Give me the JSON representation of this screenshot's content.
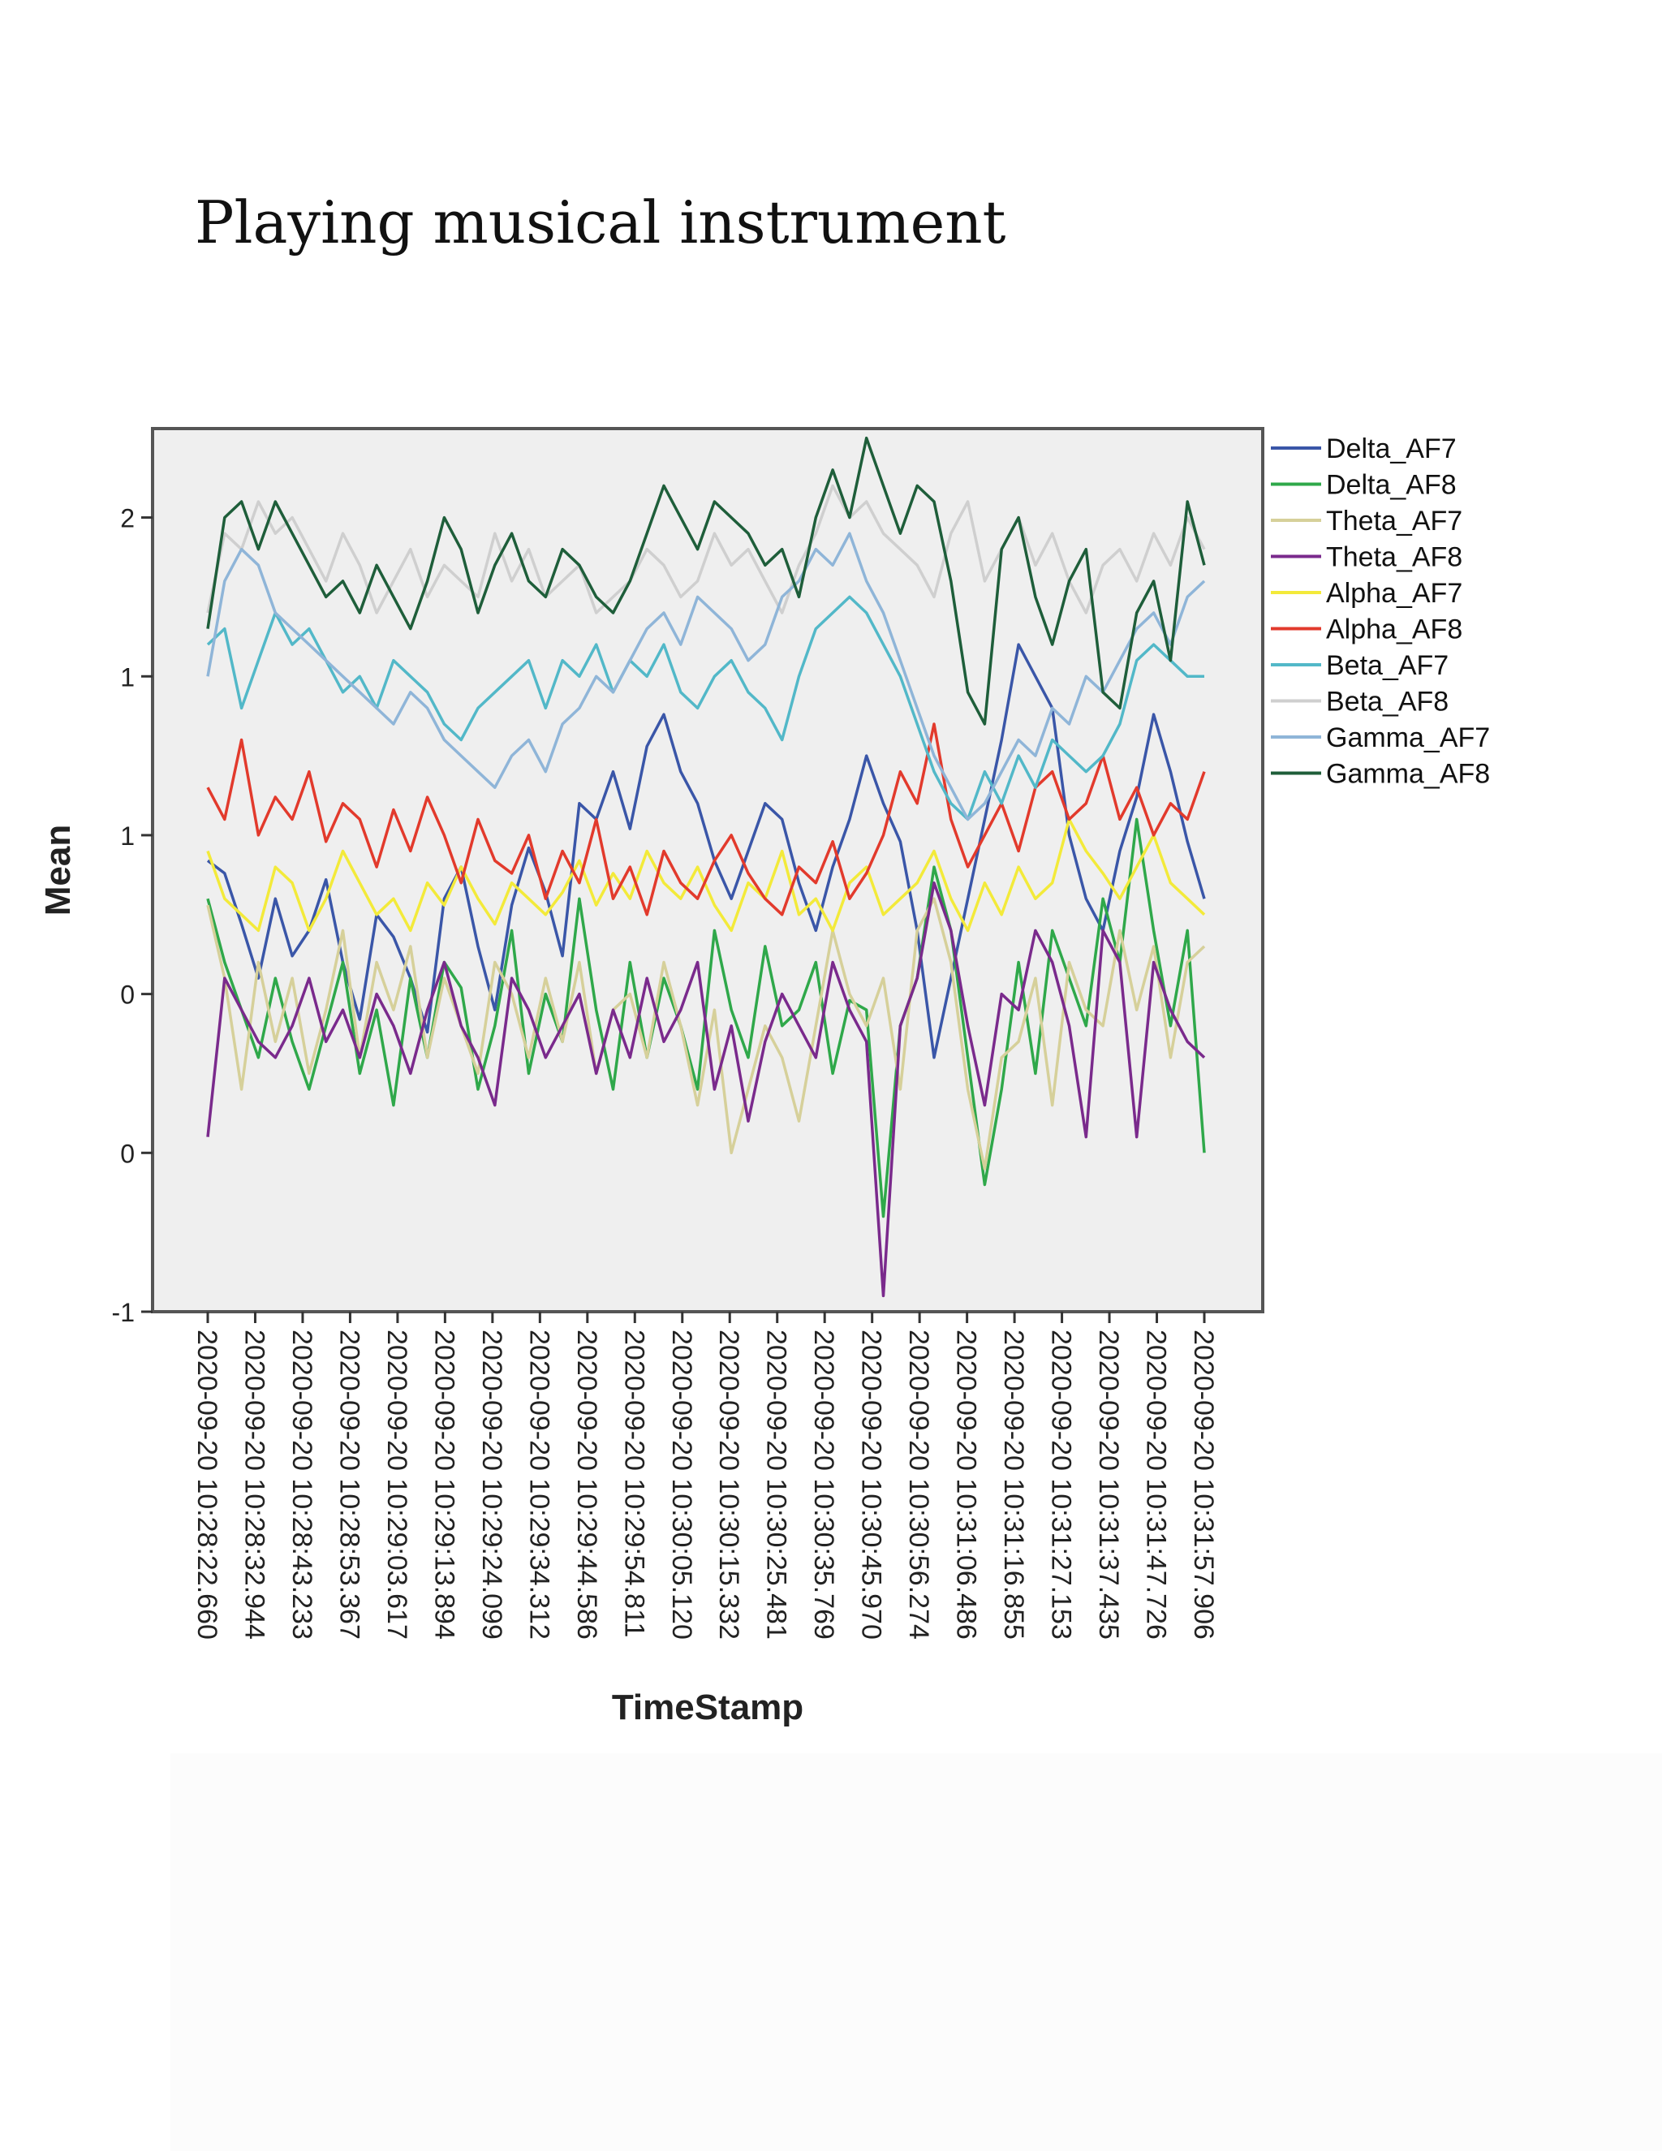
{
  "page_title": "Playing musical instrument",
  "chart_data": {
    "type": "line",
    "xlabel": "TimeStamp",
    "ylabel": "Mean",
    "yticks": [
      "-1",
      "0",
      "0",
      "1",
      "1",
      "2"
    ],
    "ytick_values": [
      -1.0,
      -0.5,
      0.0,
      0.5,
      1.0,
      1.5
    ],
    "ylim": [
      -1.0,
      1.78
    ],
    "grid": false,
    "legend_position": "right",
    "x_ticks": [
      "2020-09-20 10:28:22.660",
      "2020-09-20 10:28:32.944",
      "2020-09-20 10:28:43.233",
      "2020-09-20 10:28:53.367",
      "2020-09-20 10:29:03.617",
      "2020-09-20 10:29:13.894",
      "2020-09-20 10:29:24.099",
      "2020-09-20 10:29:34.312",
      "2020-09-20 10:29:44.586",
      "2020-09-20 10:29:54.811",
      "2020-09-20 10:30:05.120",
      "2020-09-20 10:30:15.332",
      "2020-09-20 10:30:25.481",
      "2020-09-20 10:30:35.769",
      "2020-09-20 10:30:45.970",
      "2020-09-20 10:30:56.274",
      "2020-09-20 10:31:06.486",
      "2020-09-20 10:31:16.855",
      "2020-09-20 10:31:27.153",
      "2020-09-20 10:31:37.435",
      "2020-09-20 10:31:47.726",
      "2020-09-20 10:31:57.906"
    ],
    "series": [
      {
        "name": "Delta_AF7",
        "color": "#3a56a8",
        "values": [
          0.42,
          0.38,
          0.22,
          0.05,
          0.3,
          0.12,
          0.2,
          0.36,
          0.1,
          -0.08,
          0.25,
          0.18,
          0.05,
          -0.12,
          0.3,
          0.4,
          0.15,
          -0.05,
          0.28,
          0.46,
          0.32,
          0.12,
          0.6,
          0.55,
          0.7,
          0.52,
          0.78,
          0.88,
          0.7,
          0.6,
          0.42,
          0.3,
          0.45,
          0.6,
          0.55,
          0.35,
          0.2,
          0.4,
          0.55,
          0.75,
          0.6,
          0.48,
          0.2,
          -0.2,
          0.05,
          0.3,
          0.55,
          0.8,
          1.1,
          1.0,
          0.9,
          0.5,
          0.3,
          0.2,
          0.45,
          0.62,
          0.88,
          0.7,
          0.48,
          0.3
        ]
      },
      {
        "name": "Delta_AF8",
        "color": "#2fa84a",
        "values": [
          0.3,
          0.1,
          -0.05,
          -0.2,
          0.05,
          -0.15,
          -0.3,
          -0.1,
          0.1,
          -0.25,
          -0.05,
          -0.35,
          0.05,
          -0.2,
          0.1,
          0.02,
          -0.3,
          -0.1,
          0.2,
          -0.25,
          0.0,
          -0.15,
          0.3,
          -0.05,
          -0.3,
          0.1,
          -0.2,
          0.05,
          -0.1,
          -0.3,
          0.2,
          -0.05,
          -0.2,
          0.15,
          -0.1,
          -0.05,
          0.1,
          -0.25,
          -0.02,
          -0.05,
          -0.7,
          -0.1,
          0.05,
          0.4,
          0.2,
          -0.2,
          -0.6,
          -0.3,
          0.1,
          -0.25,
          0.2,
          0.05,
          -0.1,
          0.3,
          0.1,
          0.55,
          0.2,
          -0.1,
          0.2,
          -0.5
        ]
      },
      {
        "name": "Theta_AF7",
        "color": "#d6d09a",
        "values": [
          0.28,
          0.05,
          -0.3,
          0.1,
          -0.15,
          0.05,
          -0.25,
          -0.05,
          0.2,
          -0.2,
          0.1,
          -0.05,
          0.15,
          -0.2,
          0.05,
          -0.1,
          -0.25,
          0.1,
          0.0,
          -0.2,
          0.05,
          -0.15,
          0.1,
          -0.25,
          -0.05,
          0.0,
          -0.2,
          0.1,
          -0.1,
          -0.35,
          -0.05,
          -0.5,
          -0.3,
          -0.1,
          -0.2,
          -0.4,
          -0.1,
          0.2,
          0.0,
          -0.1,
          0.05,
          -0.3,
          0.2,
          0.3,
          0.1,
          -0.3,
          -0.55,
          -0.2,
          -0.15,
          0.05,
          -0.35,
          0.1,
          -0.05,
          -0.1,
          0.2,
          -0.05,
          0.15,
          -0.2,
          0.1,
          0.15
        ]
      },
      {
        "name": "Theta_AF8",
        "color": "#7a2a8c",
        "values": [
          -0.45,
          0.05,
          -0.05,
          -0.15,
          -0.2,
          -0.1,
          0.05,
          -0.15,
          -0.05,
          -0.2,
          0.0,
          -0.1,
          -0.25,
          -0.05,
          0.1,
          -0.1,
          -0.2,
          -0.35,
          0.05,
          -0.05,
          -0.2,
          -0.1,
          0.0,
          -0.25,
          -0.05,
          -0.2,
          0.05,
          -0.15,
          -0.05,
          0.1,
          -0.3,
          -0.1,
          -0.4,
          -0.15,
          0.0,
          -0.1,
          -0.2,
          0.1,
          -0.05,
          -0.15,
          -0.95,
          -0.1,
          0.05,
          0.35,
          0.2,
          -0.1,
          -0.35,
          0.0,
          -0.05,
          0.2,
          0.1,
          -0.1,
          -0.45,
          0.2,
          0.1,
          -0.45,
          0.1,
          -0.05,
          -0.15,
          -0.2
        ]
      },
      {
        "name": "Alpha_AF7",
        "color": "#f3ea3a",
        "values": [
          0.45,
          0.3,
          0.25,
          0.2,
          0.4,
          0.35,
          0.2,
          0.3,
          0.45,
          0.35,
          0.25,
          0.3,
          0.2,
          0.35,
          0.28,
          0.4,
          0.3,
          0.22,
          0.35,
          0.3,
          0.25,
          0.32,
          0.42,
          0.28,
          0.38,
          0.3,
          0.45,
          0.35,
          0.3,
          0.4,
          0.28,
          0.2,
          0.35,
          0.3,
          0.45,
          0.25,
          0.3,
          0.2,
          0.35,
          0.4,
          0.25,
          0.3,
          0.35,
          0.45,
          0.3,
          0.2,
          0.35,
          0.25,
          0.4,
          0.3,
          0.35,
          0.55,
          0.45,
          0.38,
          0.3,
          0.4,
          0.5,
          0.35,
          0.3,
          0.25
        ]
      },
      {
        "name": "Alpha_AF8",
        "color": "#e23a2c",
        "values": [
          0.65,
          0.55,
          0.8,
          0.5,
          0.62,
          0.55,
          0.7,
          0.48,
          0.6,
          0.55,
          0.4,
          0.58,
          0.45,
          0.62,
          0.5,
          0.35,
          0.55,
          0.42,
          0.38,
          0.5,
          0.3,
          0.45,
          0.35,
          0.55,
          0.3,
          0.4,
          0.25,
          0.45,
          0.35,
          0.3,
          0.42,
          0.5,
          0.38,
          0.3,
          0.25,
          0.4,
          0.35,
          0.48,
          0.3,
          0.38,
          0.5,
          0.7,
          0.6,
          0.85,
          0.55,
          0.4,
          0.5,
          0.6,
          0.45,
          0.65,
          0.7,
          0.55,
          0.6,
          0.75,
          0.55,
          0.65,
          0.5,
          0.6,
          0.55,
          0.7
        ]
      },
      {
        "name": "Beta_AF7",
        "color": "#52b8c8",
        "values": [
          1.1,
          1.15,
          0.9,
          1.05,
          1.2,
          1.1,
          1.15,
          1.05,
          0.95,
          1.0,
          0.9,
          1.05,
          1.0,
          0.95,
          0.85,
          0.8,
          0.9,
          0.95,
          1.0,
          1.05,
          0.9,
          1.05,
          1.0,
          1.1,
          0.95,
          1.05,
          1.0,
          1.1,
          0.95,
          0.9,
          1.0,
          1.05,
          0.95,
          0.9,
          0.8,
          1.0,
          1.15,
          1.2,
          1.25,
          1.2,
          1.1,
          1.0,
          0.85,
          0.7,
          0.6,
          0.55,
          0.7,
          0.6,
          0.75,
          0.65,
          0.8,
          0.75,
          0.7,
          0.75,
          0.85,
          1.05,
          1.1,
          1.05,
          1.0,
          1.0
        ]
      },
      {
        "name": "Beta_AF8",
        "color": "#cfcfcf",
        "values": [
          1.2,
          1.45,
          1.4,
          1.55,
          1.45,
          1.5,
          1.4,
          1.3,
          1.45,
          1.35,
          1.2,
          1.3,
          1.4,
          1.25,
          1.35,
          1.3,
          1.25,
          1.45,
          1.3,
          1.4,
          1.25,
          1.3,
          1.35,
          1.2,
          1.25,
          1.3,
          1.4,
          1.35,
          1.25,
          1.3,
          1.45,
          1.35,
          1.4,
          1.3,
          1.2,
          1.35,
          1.45,
          1.6,
          1.5,
          1.55,
          1.45,
          1.4,
          1.35,
          1.25,
          1.45,
          1.55,
          1.3,
          1.4,
          1.5,
          1.35,
          1.45,
          1.3,
          1.2,
          1.35,
          1.4,
          1.3,
          1.45,
          1.35,
          1.5,
          1.4
        ]
      },
      {
        "name": "Gamma_AF7",
        "color": "#8fb5d8",
        "values": [
          1.0,
          1.3,
          1.4,
          1.35,
          1.2,
          1.15,
          1.1,
          1.05,
          1.0,
          0.95,
          0.9,
          0.85,
          0.95,
          0.9,
          0.8,
          0.75,
          0.7,
          0.65,
          0.75,
          0.8,
          0.7,
          0.85,
          0.9,
          1.0,
          0.95,
          1.05,
          1.15,
          1.2,
          1.1,
          1.25,
          1.2,
          1.15,
          1.05,
          1.1,
          1.25,
          1.3,
          1.4,
          1.35,
          1.45,
          1.3,
          1.2,
          1.05,
          0.9,
          0.75,
          0.65,
          0.55,
          0.6,
          0.7,
          0.8,
          0.75,
          0.9,
          0.85,
          1.0,
          0.95,
          1.05,
          1.15,
          1.2,
          1.1,
          1.25,
          1.3
        ]
      },
      {
        "name": "Gamma_AF8",
        "color": "#1e5e3a",
        "values": [
          1.15,
          1.5,
          1.55,
          1.4,
          1.55,
          1.45,
          1.35,
          1.25,
          1.3,
          1.2,
          1.35,
          1.25,
          1.15,
          1.3,
          1.5,
          1.4,
          1.2,
          1.35,
          1.45,
          1.3,
          1.25,
          1.4,
          1.35,
          1.25,
          1.2,
          1.3,
          1.45,
          1.6,
          1.5,
          1.4,
          1.55,
          1.5,
          1.45,
          1.35,
          1.4,
          1.25,
          1.5,
          1.65,
          1.5,
          1.75,
          1.6,
          1.45,
          1.6,
          1.55,
          1.3,
          0.95,
          0.85,
          1.4,
          1.5,
          1.25,
          1.1,
          1.3,
          1.4,
          0.95,
          0.9,
          1.2,
          1.3,
          1.05,
          1.55,
          1.35
        ]
      }
    ]
  }
}
